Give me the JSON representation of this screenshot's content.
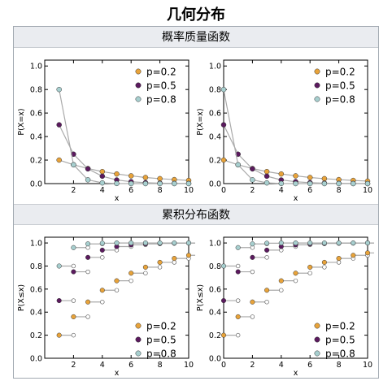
{
  "page": {
    "title": "几何分布"
  },
  "sections": [
    {
      "heading": "概率质量函数"
    },
    {
      "heading": "累积分布函数"
    }
  ],
  "colors": {
    "p=0.2": "#e8a33a",
    "p=0.5": "#5b1a5e",
    "p=0.8": "#a7cfcf",
    "connector": "#aaaaaa",
    "axis": "#000000"
  },
  "chart_data": [
    {
      "type": "line",
      "panel": "pmf-left",
      "support": "x>=1",
      "xlabel": "x",
      "ylabel": "P(X=x)",
      "xlim": [
        0,
        10
      ],
      "ylim": [
        0,
        1.05
      ],
      "xticks": [
        "2",
        "4",
        "6",
        "8",
        "10"
      ],
      "yticks": [
        "0.0",
        "0.2",
        "0.4",
        "0.6",
        "0.8",
        "1.0"
      ],
      "legend": "top-right",
      "x": [
        1,
        2,
        3,
        4,
        5,
        6,
        7,
        8,
        9,
        10
      ],
      "series": [
        {
          "name": "p=0.2",
          "values": [
            0.2,
            0.16,
            0.128,
            0.102,
            0.082,
            0.066,
            0.052,
            0.042,
            0.034,
            0.027
          ]
        },
        {
          "name": "p=0.5",
          "values": [
            0.5,
            0.25,
            0.125,
            0.063,
            0.031,
            0.016,
            0.008,
            0.004,
            0.002,
            0.001
          ]
        },
        {
          "name": "p=0.8",
          "values": [
            0.8,
            0.16,
            0.032,
            0.006,
            0.001,
            0.0,
            0.0,
            0.0,
            0.0,
            0.0
          ]
        }
      ]
    },
    {
      "type": "line",
      "panel": "pmf-right",
      "support": "x>=0",
      "xlabel": "x",
      "ylabel": "P(X=x)",
      "xlim": [
        0,
        10
      ],
      "ylim": [
        0,
        1.05
      ],
      "xticks": [
        "0",
        "2",
        "4",
        "6",
        "8",
        "10"
      ],
      "yticks": [
        "0.0",
        "0.2",
        "0.4",
        "0.6",
        "0.8",
        "1.0"
      ],
      "legend": "top-right",
      "x": [
        0,
        1,
        2,
        3,
        4,
        5,
        6,
        7,
        8,
        9,
        10
      ],
      "series": [
        {
          "name": "p=0.2",
          "values": [
            0.2,
            0.16,
            0.128,
            0.102,
            0.082,
            0.066,
            0.052,
            0.042,
            0.034,
            0.027,
            0.021
          ]
        },
        {
          "name": "p=0.5",
          "values": [
            0.5,
            0.25,
            0.125,
            0.063,
            0.031,
            0.016,
            0.008,
            0.004,
            0.002,
            0.001,
            0.0
          ]
        },
        {
          "name": "p=0.8",
          "values": [
            0.8,
            0.16,
            0.032,
            0.006,
            0.001,
            0.0,
            0.0,
            0.0,
            0.0,
            0.0,
            0.0
          ]
        }
      ]
    },
    {
      "type": "step",
      "panel": "cdf-left",
      "support": "x>=1",
      "xlabel": "x",
      "ylabel": "P(X≤x)",
      "xlim": [
        0,
        10
      ],
      "ylim": [
        0,
        1.05
      ],
      "xticks": [
        "2",
        "4",
        "6",
        "8",
        "10"
      ],
      "yticks": [
        "0.0",
        "0.2",
        "0.4",
        "0.6",
        "0.8",
        "1.0"
      ],
      "legend": "bottom-right",
      "x": [
        1,
        2,
        3,
        4,
        5,
        6,
        7,
        8,
        9,
        10
      ],
      "series": [
        {
          "name": "p=0.2",
          "values": [
            0.2,
            0.36,
            0.488,
            0.59,
            0.672,
            0.738,
            0.79,
            0.832,
            0.866,
            0.893
          ]
        },
        {
          "name": "p=0.5",
          "values": [
            0.5,
            0.75,
            0.875,
            0.938,
            0.969,
            0.984,
            0.992,
            0.996,
            0.998,
            0.999
          ]
        },
        {
          "name": "p=0.8",
          "values": [
            0.8,
            0.96,
            0.992,
            0.998,
            1.0,
            1.0,
            1.0,
            1.0,
            1.0,
            1.0
          ]
        }
      ]
    },
    {
      "type": "step",
      "panel": "cdf-right",
      "support": "x>=0",
      "xlabel": "x",
      "ylabel": "P(X≤x)",
      "xlim": [
        0,
        10
      ],
      "ylim": [
        0,
        1.05
      ],
      "xticks": [
        "0",
        "2",
        "4",
        "6",
        "8",
        "10"
      ],
      "yticks": [
        "0.0",
        "0.2",
        "0.4",
        "0.6",
        "0.8",
        "1.0"
      ],
      "legend": "bottom-right",
      "x": [
        0,
        1,
        2,
        3,
        4,
        5,
        6,
        7,
        8,
        9,
        10
      ],
      "series": [
        {
          "name": "p=0.2",
          "values": [
            0.2,
            0.36,
            0.488,
            0.59,
            0.672,
            0.738,
            0.79,
            0.832,
            0.866,
            0.893,
            0.914
          ]
        },
        {
          "name": "p=0.5",
          "values": [
            0.5,
            0.75,
            0.875,
            0.938,
            0.969,
            0.984,
            0.992,
            0.996,
            0.998,
            0.999,
            1.0
          ]
        },
        {
          "name": "p=0.8",
          "values": [
            0.8,
            0.96,
            0.992,
            0.998,
            1.0,
            1.0,
            1.0,
            1.0,
            1.0,
            1.0,
            1.0
          ]
        }
      ]
    }
  ]
}
